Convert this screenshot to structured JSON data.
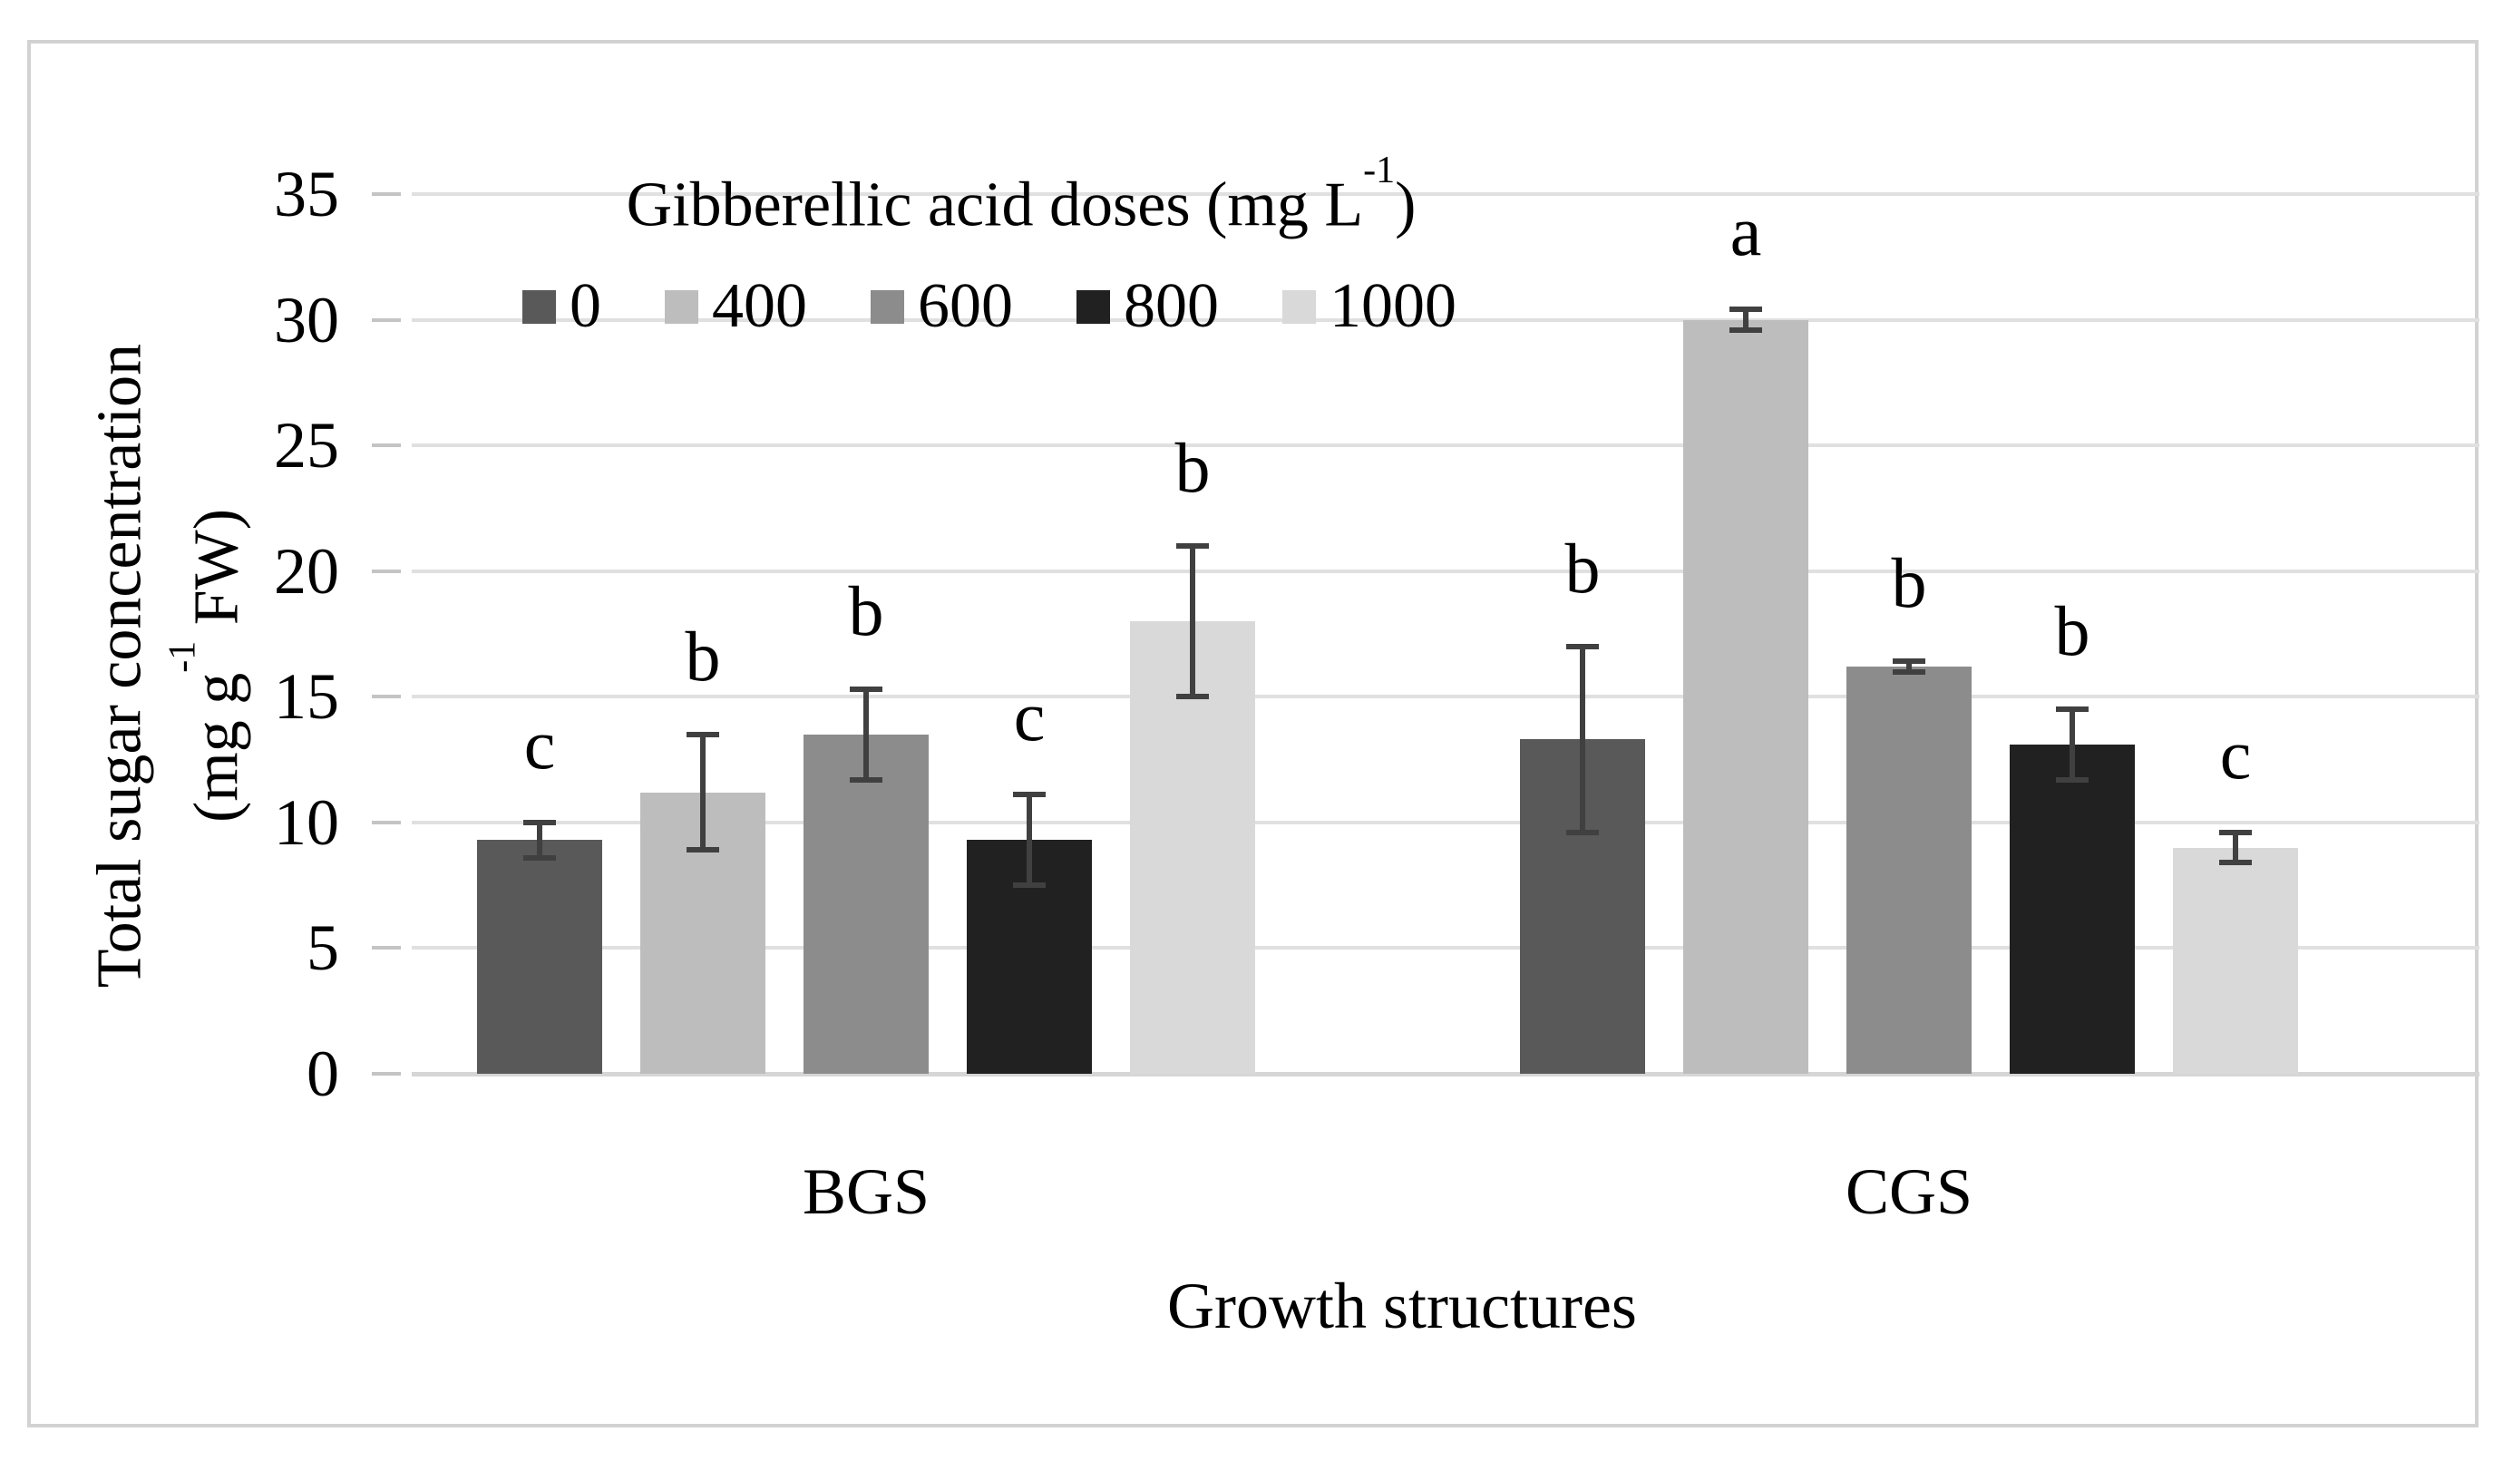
{
  "chart_data": {
    "type": "bar",
    "categories": [
      "BGS",
      "CGS"
    ],
    "series": [
      {
        "name": "0",
        "color": "#595959",
        "values": [
          9.3,
          13.3
        ],
        "errors": [
          0.7,
          3.7
        ],
        "sig_letters": [
          "c",
          "b"
        ]
      },
      {
        "name": "400",
        "color": "#bdbdbd",
        "values": [
          11.2,
          30.0
        ],
        "errors": [
          2.3,
          0.4
        ],
        "sig_letters": [
          "b",
          "a"
        ]
      },
      {
        "name": "600",
        "color": "#8c8c8c",
        "values": [
          13.5,
          16.2
        ],
        "errors": [
          1.8,
          0.2
        ],
        "sig_letters": [
          "b",
          "b"
        ]
      },
      {
        "name": "800",
        "color": "#212121",
        "values": [
          9.3,
          13.1
        ],
        "errors": [
          1.8,
          1.4
        ],
        "sig_letters": [
          "c",
          "b"
        ]
      },
      {
        "name": "1000",
        "color": "#d9d9d9",
        "values": [
          18.0,
          9.0
        ],
        "errors": [
          3.0,
          0.6
        ],
        "sig_letters": [
          "b",
          "c"
        ]
      }
    ],
    "y_ticks": [
      0,
      5,
      10,
      15,
      20,
      25,
      30,
      35
    ],
    "ylim": [
      0,
      35
    ],
    "grid": true,
    "error_bars": true,
    "legend_position": "top-inside-left",
    "xlabel": "Growth structures",
    "ylabel_line1": "Total sugar concentration",
    "ylabel_line2_prefix": "(mg g",
    "ylabel_line2_sup": "-1",
    "ylabel_line2_suffix": " FW)",
    "legend_title_prefix": "Gibberellic acid doses (mg L",
    "legend_title_sup": "-1",
    "legend_title_suffix": ")"
  },
  "colors": {
    "gridline": "#e0e0e0",
    "baseline": "#d6d6d6",
    "tick": "#c4c4c4",
    "error_bar": "#404040",
    "frame_border": "#d2d2d2",
    "background": "#ffffff",
    "text": "#000000"
  }
}
